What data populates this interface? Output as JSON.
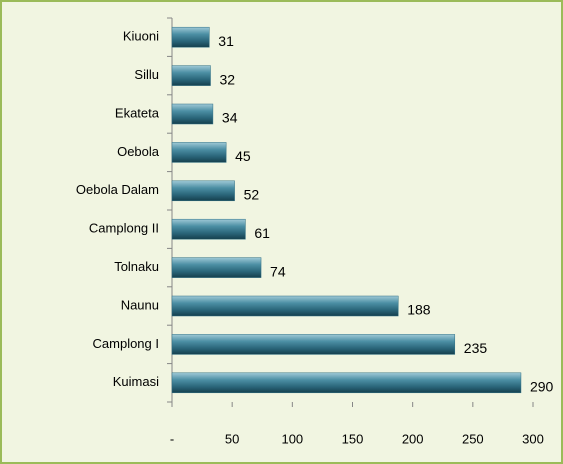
{
  "chart_data": {
    "type": "bar",
    "orientation": "horizontal",
    "categories": [
      "Kiuoni",
      "Sillu",
      "Ekateta",
      "Oebola",
      "Oebola Dalam",
      "Camplong II",
      "Tolnaku",
      "Naunu",
      "Camplong I",
      "Kuimasi"
    ],
    "values": [
      31,
      32,
      34,
      45,
      52,
      61,
      74,
      188,
      235,
      290
    ],
    "color": "#2f6f84",
    "xlim": [
      0,
      300
    ],
    "xticks": [
      {
        "value": 0,
        "label": "-"
      },
      50,
      100,
      150,
      200,
      250,
      300
    ],
    "grid": false
  }
}
